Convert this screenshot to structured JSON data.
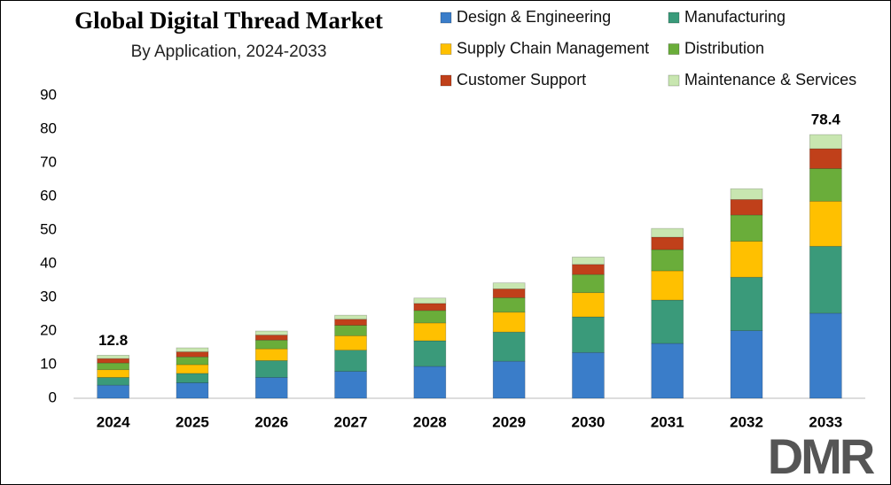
{
  "chart_data": {
    "type": "stacked_bar",
    "title": "Global Digital Thread Market",
    "subtitle": "By Application, 2024-2033",
    "categories": [
      "2024",
      "2025",
      "2026",
      "2027",
      "2028",
      "2029",
      "2030",
      "2031",
      "2032",
      "2033"
    ],
    "series": [
      {
        "name": "Design & Engineering",
        "color": "#3a7dc9",
        "values": [
          3.9,
          4.6,
          6.2,
          8.0,
          9.5,
          11.0,
          13.6,
          16.3,
          20.1,
          25.3
        ]
      },
      {
        "name": "Manufacturing",
        "color": "#3a9a7a",
        "values": [
          2.3,
          2.8,
          5.0,
          6.3,
          7.6,
          8.7,
          10.6,
          12.9,
          15.9,
          19.9
        ]
      },
      {
        "name": "Supply Chain Management",
        "color": "#ffc000",
        "values": [
          2.3,
          2.6,
          3.5,
          4.3,
          5.3,
          5.9,
          7.2,
          8.7,
          10.7,
          13.4
        ]
      },
      {
        "name": "Distribution",
        "color": "#6aad3a",
        "values": [
          2.0,
          2.3,
          2.6,
          3.1,
          3.7,
          4.3,
          5.4,
          6.3,
          7.8,
          9.7
        ]
      },
      {
        "name": "Customer Support",
        "color": "#c0401a",
        "values": [
          1.3,
          1.5,
          1.5,
          1.8,
          2.1,
          2.6,
          3.0,
          3.7,
          4.6,
          5.9
        ]
      },
      {
        "name": "Maintenance & Services",
        "color": "#c8e6b0",
        "values": [
          1.0,
          1.2,
          1.2,
          1.2,
          1.6,
          1.8,
          2.2,
          2.6,
          3.2,
          4.2
        ]
      }
    ],
    "totals": [
      12.8,
      null,
      null,
      null,
      null,
      null,
      null,
      null,
      null,
      78.4
    ],
    "ylim": [
      0,
      90
    ],
    "yticks": [
      0,
      10,
      20,
      30,
      40,
      50,
      60,
      70,
      80,
      90
    ],
    "grid": false,
    "legend": "top-right",
    "logo": "DMR"
  }
}
